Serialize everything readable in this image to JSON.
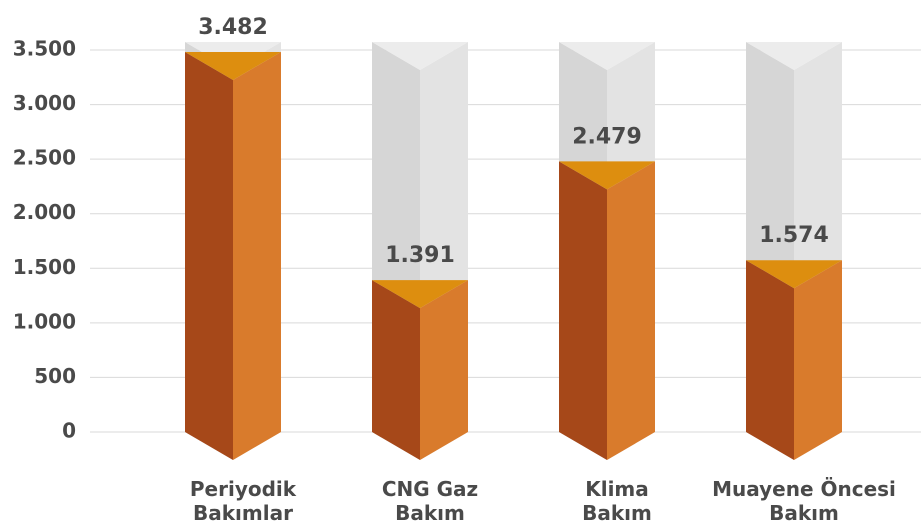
{
  "chart_data": {
    "type": "bar3d",
    "categories": [
      "Periyodik Bakımlar",
      "CNG Gaz Bakım",
      "Klima Bakım",
      "Muayene Öncesi Bakım"
    ],
    "values": [
      3482,
      1391,
      2479,
      1574
    ],
    "value_labels": [
      "3.482",
      "1.391",
      "2.479",
      "1.574"
    ],
    "color": "#d97b2c",
    "ylim": [
      0,
      3500
    ],
    "yticks": [
      0,
      500,
      {
        "value": 1000,
        "label": "1.000"
      },
      {
        "value": 1500,
        "label": "1.500"
      },
      {
        "value": 2000,
        "label": "2.000"
      },
      {
        "value": 2500,
        "label": "2.500"
      },
      {
        "value": 3000,
        "label": "3.000"
      },
      {
        "value": 3500,
        "label": "3.500"
      }
    ],
    "grid": true
  }
}
